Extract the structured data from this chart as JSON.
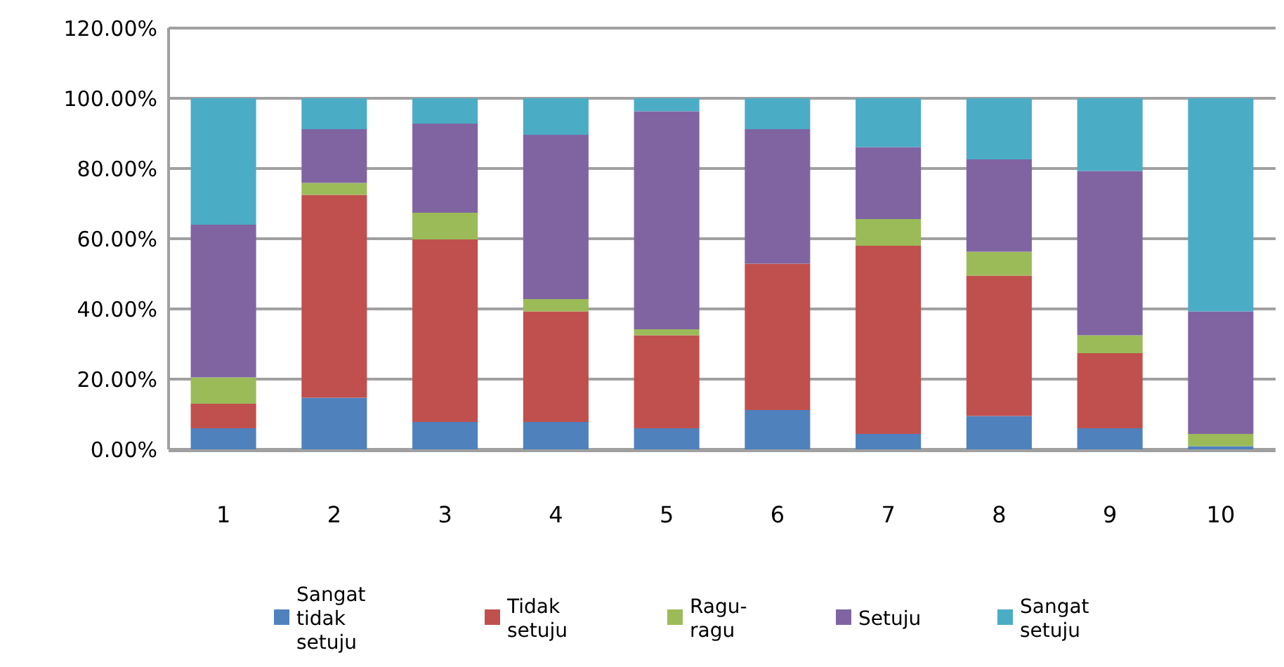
{
  "chart_data": {
    "type": "bar",
    "stacked": true,
    "categories": [
      "1",
      "2",
      "3",
      "4",
      "5",
      "6",
      "7",
      "8",
      "9",
      "10"
    ],
    "series": [
      {
        "name": "Sangat tidak setuju",
        "color": "#4f81bd",
        "values": [
          6,
          14.7,
          7.8,
          7.8,
          6,
          11.2,
          4.4,
          9.5,
          6,
          0.9
        ]
      },
      {
        "name": "Tidak setuju",
        "color": "#c0504d",
        "values": [
          7,
          57.8,
          52,
          31.5,
          26.5,
          41.7,
          53.6,
          40,
          21.4,
          0
        ]
      },
      {
        "name": "Ragu-ragu",
        "color": "#9bbb59",
        "values": [
          7.5,
          3.4,
          7.6,
          3.5,
          1.7,
          0,
          7.6,
          6.8,
          5.1,
          3.5
        ]
      },
      {
        "name": "Setuju",
        "color": "#8064a2",
        "values": [
          43.5,
          15.3,
          25.4,
          46.8,
          62.1,
          38.3,
          20.5,
          26.3,
          46.8,
          34.9
        ]
      },
      {
        "name": "Sangat setuju",
        "color": "#4bacc6",
        "values": [
          36,
          8.8,
          7.2,
          10.4,
          3.7,
          8.8,
          13.9,
          17.4,
          20.7,
          60.7
        ]
      }
    ],
    "ylim": [
      0,
      120
    ],
    "yticks": [
      {
        "value": 0,
        "label": "0.00%"
      },
      {
        "value": 20,
        "label": "20.00%"
      },
      {
        "value": 40,
        "label": "40.00%"
      },
      {
        "value": 60,
        "label": "60.00%"
      },
      {
        "value": 80,
        "label": "80.00%"
      },
      {
        "value": 100,
        "label": "100.00%"
      },
      {
        "value": 120,
        "label": "120.00%"
      }
    ],
    "grid": "y",
    "legend": "bottom"
  }
}
